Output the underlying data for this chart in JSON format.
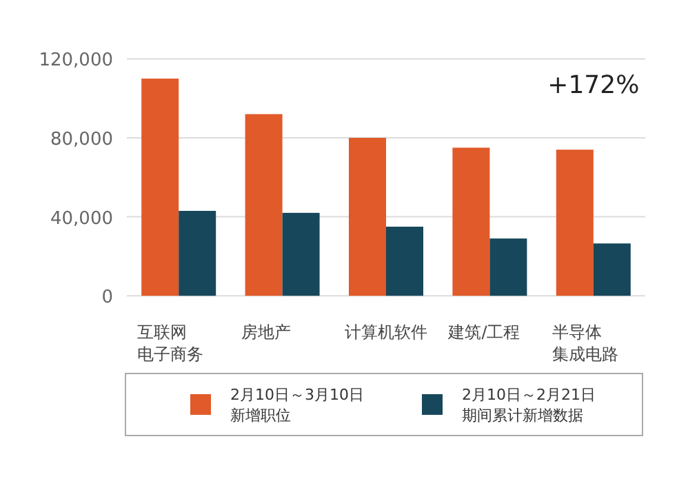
{
  "chart_data": {
    "type": "bar",
    "categories": [
      "互联网电子商务",
      "房地产",
      "计算机软件",
      "建筑/工程",
      "半导体集成电路"
    ],
    "series": [
      {
        "name": "2月10日～3月10日新增职位",
        "color": "#e15a29",
        "values": [
          110000,
          92000,
          80000,
          75000,
          74000
        ]
      },
      {
        "name": "2月10日～2月21日期间累计新增数据",
        "color": "#17475a",
        "values": [
          43000,
          42000,
          35000,
          29000,
          26500
        ]
      }
    ],
    "ylim": [
      0,
      120000
    ],
    "yticks": [
      {
        "value": 0,
        "label": "0"
      },
      {
        "value": 40000,
        "label": "40,000"
      },
      {
        "value": 80000,
        "label": "80,000"
      },
      {
        "value": 120000,
        "label": "120,000"
      }
    ],
    "grid": "y",
    "legend": "bottom",
    "annotations": [
      "+172%"
    ]
  }
}
